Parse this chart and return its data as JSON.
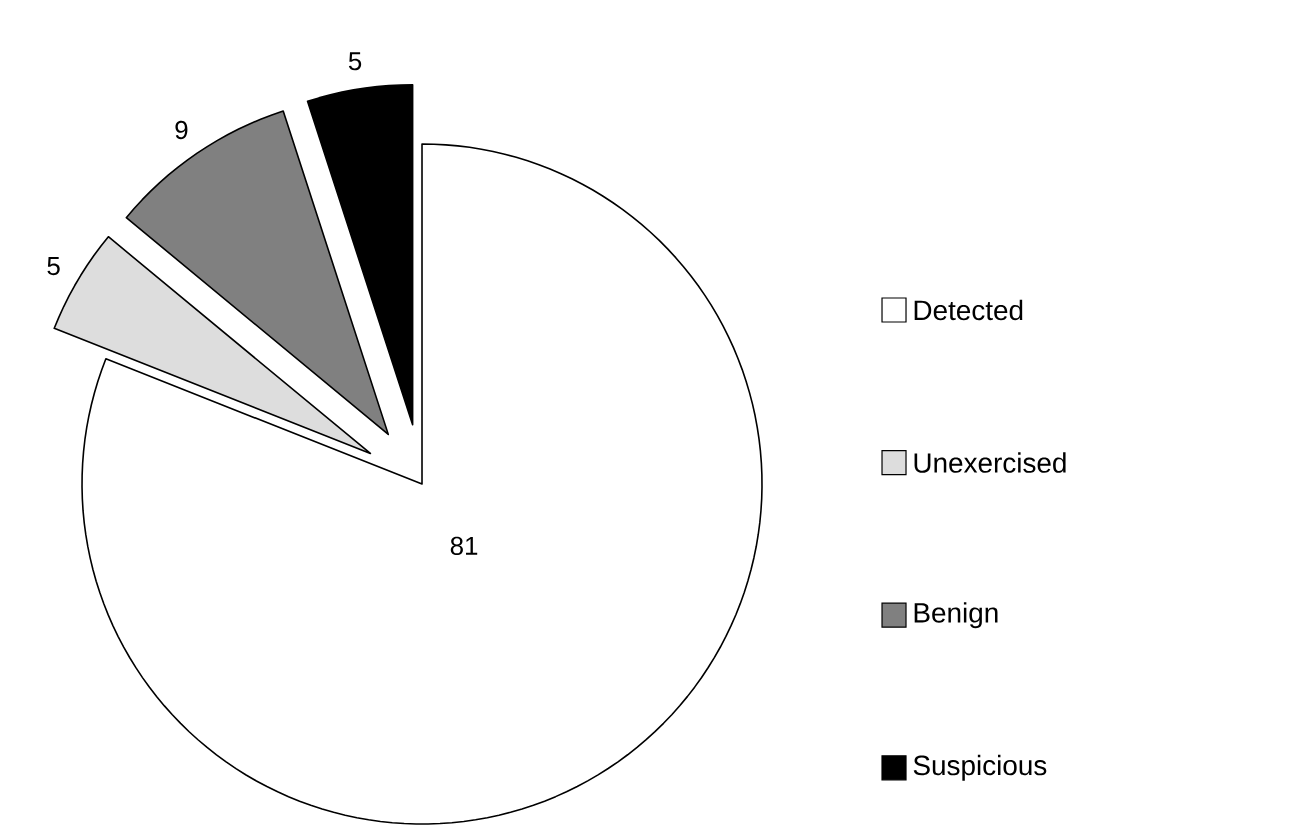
{
  "chart_data": {
    "type": "pie",
    "categories": [
      "Detected",
      "Unexercised",
      "Benign",
      "Suspicious"
    ],
    "values": [
      81,
      5,
      9,
      5
    ],
    "colors": [
      "#ffffff",
      "#dddddd",
      "#808080",
      "#000000"
    ],
    "data_labels": true,
    "legend": "right"
  }
}
